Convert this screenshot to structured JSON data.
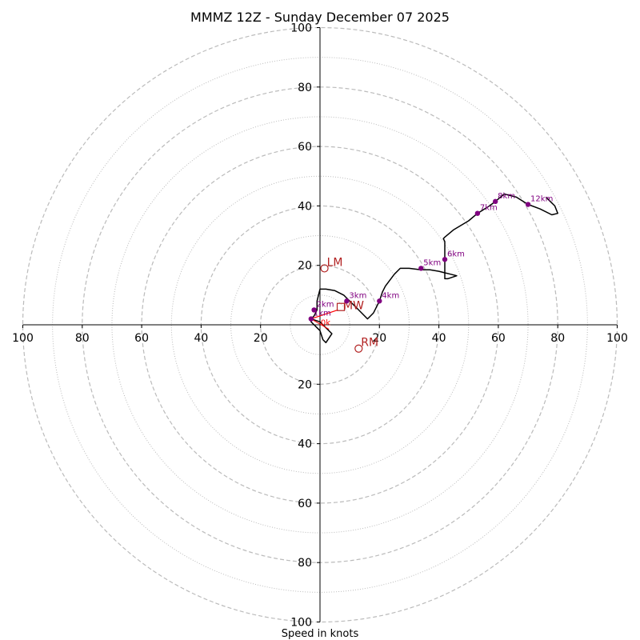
{
  "chart_data": {
    "type": "hodograph",
    "title": "MMMZ 12Z - Sunday December 07 2025",
    "xlabel": "Speed in knots",
    "range": [
      -100,
      100
    ],
    "ring_major": [
      20,
      40,
      60,
      80,
      100
    ],
    "ring_minor": [
      10,
      30,
      50,
      70,
      90
    ],
    "ticks": {
      "left": [
        "100",
        "80",
        "60",
        "40",
        "20"
      ],
      "right": [
        "20",
        "40",
        "60",
        "80",
        "100"
      ],
      "top": [
        "20",
        "40",
        "60",
        "80",
        "100"
      ],
      "bottom": [
        "20",
        "40",
        "60",
        "80",
        "100"
      ]
    },
    "hodograph": [
      [
        0,
        -2
      ],
      [
        -1,
        -1
      ],
      [
        -2,
        0
      ],
      [
        -3,
        1
      ],
      [
        -3,
        2
      ],
      [
        -2,
        3
      ],
      [
        -1,
        5
      ],
      [
        -1,
        8
      ],
      [
        0,
        12
      ],
      [
        2,
        12
      ],
      [
        5,
        11.5
      ],
      [
        8,
        10
      ],
      [
        9,
        9
      ],
      [
        11,
        7
      ],
      [
        13,
        5
      ],
      [
        15,
        3
      ],
      [
        16,
        2
      ],
      [
        17,
        3
      ],
      [
        18,
        4
      ],
      [
        19,
        6
      ],
      [
        20,
        8
      ],
      [
        21,
        11
      ],
      [
        22,
        13
      ],
      [
        25,
        17
      ],
      [
        27,
        19
      ],
      [
        30,
        19
      ],
      [
        34,
        18.5
      ],
      [
        37,
        18.5
      ],
      [
        40,
        18
      ],
      [
        42,
        17.5
      ],
      [
        44,
        17
      ],
      [
        46,
        16.5
      ],
      [
        43,
        15.5
      ],
      [
        42,
        15.5
      ],
      [
        42,
        20
      ],
      [
        42,
        22
      ],
      [
        42,
        25
      ],
      [
        42,
        28
      ],
      [
        41.5,
        29
      ],
      [
        42,
        29.5
      ],
      [
        45,
        32
      ],
      [
        50,
        35
      ],
      [
        53,
        37.5
      ],
      [
        57,
        40
      ],
      [
        59,
        41.5
      ],
      [
        62,
        44
      ],
      [
        66,
        43
      ],
      [
        70,
        40.5
      ],
      [
        74,
        39
      ],
      [
        78,
        37
      ],
      [
        80,
        37.5
      ],
      [
        79,
        40
      ],
      [
        76,
        43
      ]
    ],
    "hodograph_loop": [
      [
        -3,
        2
      ],
      [
        0,
        1
      ],
      [
        2,
        -1
      ],
      [
        4,
        -3
      ],
      [
        2,
        -6
      ],
      [
        1,
        -5
      ],
      [
        0,
        -2
      ]
    ],
    "height_markers": [
      {
        "label": "1km",
        "u": -3,
        "v": 2
      },
      {
        "label": "2km",
        "u": -2,
        "v": 5
      },
      {
        "label": "3km",
        "u": 9,
        "v": 8
      },
      {
        "label": "4km",
        "u": 20,
        "v": 8
      },
      {
        "label": "5km",
        "u": 34,
        "v": 19
      },
      {
        "label": "6km",
        "u": 42,
        "v": 22
      },
      {
        "label": "7km",
        "u": 53,
        "v": 37.5
      },
      {
        "label": "8km",
        "u": 59,
        "v": 41.5
      },
      {
        "label": "12km",
        "u": 70,
        "v": 40.5
      }
    ],
    "storm_motion": {
      "lm": {
        "label": "LM",
        "u": 1.5,
        "v": 19
      },
      "rm": {
        "label": "RM",
        "u": 13,
        "v": -8
      },
      "mw": {
        "label": "MW",
        "u": 7,
        "v": 6
      },
      "shear_vector": [
        [
          -3,
          2
        ],
        [
          6,
          5
        ]
      ],
      "origin_label": "0k"
    },
    "colors": {
      "hodograph": "#000000",
      "marker": "#800080",
      "storm": "#b22222",
      "shear": "#ff0000",
      "ring": "#bbbbbb",
      "axis": "#000000"
    }
  }
}
